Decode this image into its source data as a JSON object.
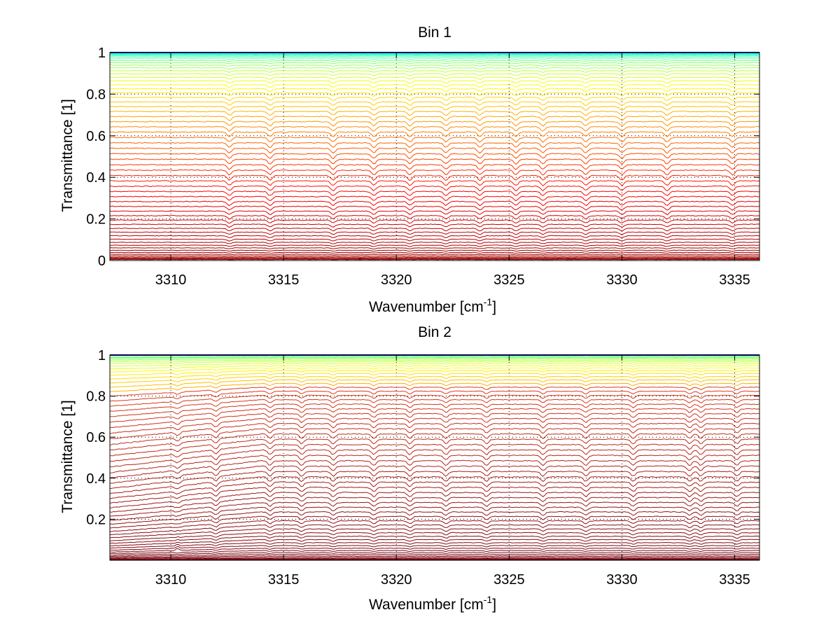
{
  "chart_data": [
    {
      "type": "line",
      "title": "Bin 1",
      "xlabel": "Wavenumber [cm",
      "xlabel_sup": "-1",
      "xlabel_suffix": "]",
      "ylabel": "Transmittance [1]",
      "xlim": [
        3307.3,
        3336.1
      ],
      "ylim": [
        0,
        1
      ],
      "x_ticks": [
        3310,
        3315,
        3320,
        3325,
        3330,
        3335
      ],
      "x_tick_labels": [
        "3310",
        "3315",
        "3320",
        "3325",
        "3330",
        "3335"
      ],
      "y_ticks": [
        0,
        0.2,
        0.4,
        0.6,
        0.8,
        1
      ],
      "y_tick_labels": [
        "0",
        "0.2",
        "0.4",
        "0.6",
        "0.8",
        "1"
      ],
      "grid": "dotted",
      "colormap": "jet (blue at T=1 through green/yellow/orange to red at T=0)",
      "series_count": 60,
      "series_levels_description": "family of transmittance spectra spaced from ~1.0 down to ~0.0",
      "absorption_lines": [
        3312.6,
        3314.4,
        3317.2,
        3319.0,
        3320.6,
        3322.2,
        3323.7,
        3325.3,
        3326.5,
        3328.4,
        3330.0,
        3332.0,
        3334.9
      ],
      "level_min": 0.0,
      "level_max": 1.0,
      "color_min": "#ff0000",
      "color_max": "#0000a0"
    },
    {
      "type": "line",
      "title": "Bin 2",
      "xlabel": "Wavenumber [cm",
      "xlabel_sup": "-1",
      "xlabel_suffix": "]",
      "ylabel": "Transmittance [1]",
      "xlim": [
        3307.3,
        3336.1
      ],
      "ylim": [
        0,
        1
      ],
      "x_ticks": [
        3310,
        3315,
        3320,
        3325,
        3330,
        3335
      ],
      "x_tick_labels": [
        "3310",
        "3315",
        "3320",
        "3325",
        "3330",
        "3335"
      ],
      "y_ticks": [
        0.2,
        0.4,
        0.6,
        0.8,
        1
      ],
      "y_tick_labels": [
        "0.2",
        "0.4",
        "0.6",
        "0.8",
        "1"
      ],
      "grid": "dotted",
      "colormap": "jet (dark blue at T=1 through green/yellow/orange to dark red at low T)",
      "series_count": 60,
      "series_levels_description": "family of transmittance spectra from ~1.0 down to ~0.0, upper curves drop toward 0.9 at the low-wavenumber end",
      "absorption_lines": [
        3310.3,
        3312.0,
        3314.4,
        3315.8,
        3317.2,
        3319.0,
        3320.6,
        3322.2,
        3324.0,
        3326.5,
        3328.4,
        3330.5,
        3333.0,
        3333.5,
        3335.1
      ],
      "level_min": 0.0,
      "level_max": 1.0,
      "color_min": "#800000",
      "color_max": "#00008f"
    }
  ]
}
